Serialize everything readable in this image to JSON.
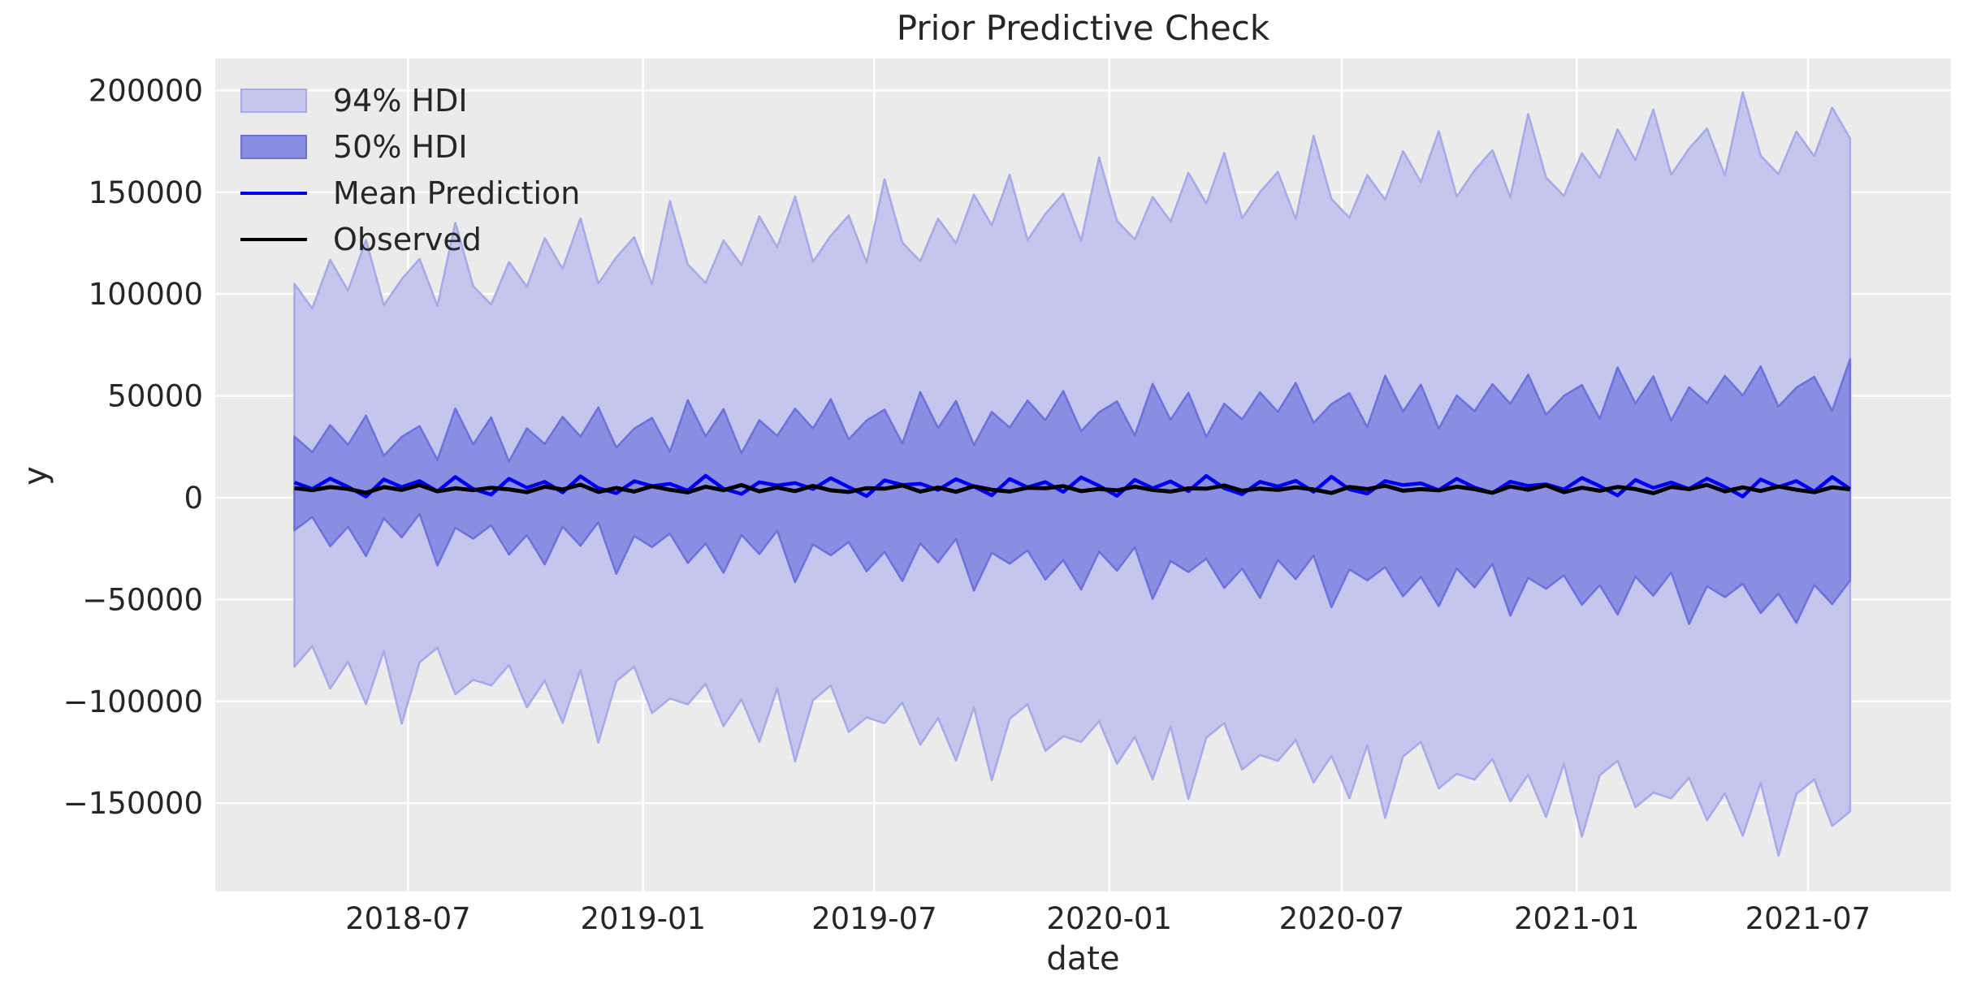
{
  "figure": {
    "title": "Prior Predictive Check",
    "x_axis_label": "date",
    "y_axis_label": "y"
  },
  "legend": {
    "items": [
      {
        "label": "94% HDI",
        "type": "patch",
        "fill": "#c4c6ee",
        "edge": "#a6aae8"
      },
      {
        "label": "50% HDI",
        "type": "patch",
        "fill": "#8a8ee2",
        "edge": "#6d71dc"
      },
      {
        "label": "Mean Prediction",
        "type": "line",
        "color": "#0000ee"
      },
      {
        "label": "Observed",
        "type": "line",
        "color": "#000000"
      }
    ]
  },
  "colors": {
    "page_bg": "#ffffff",
    "plot_bg": "#ebebeb",
    "grid": "#ffffff",
    "text": "#262626",
    "hdi94_fill": "#c4c6ee",
    "hdi94_edge": "#a6aae8",
    "hdi50_fill": "#8a8ee2",
    "hdi50_edge": "#6d71dc",
    "mean_line": "#0000ee",
    "observed_line": "#000000"
  },
  "chart_data": {
    "type": "line",
    "title": "Prior Predictive Check",
    "xlabel": "date",
    "ylabel": "y",
    "legend_position": "upper left",
    "grid": true,
    "x_domain": [
      "2018-01-31",
      "2021-10-21"
    ],
    "y_domain": [
      -193400,
      215700
    ],
    "x_ticks": [
      {
        "date": "2018-07-01",
        "label": "2018-07"
      },
      {
        "date": "2019-01-01",
        "label": "2019-01"
      },
      {
        "date": "2019-07-01",
        "label": "2019-07"
      },
      {
        "date": "2020-01-01",
        "label": "2020-01"
      },
      {
        "date": "2020-07-01",
        "label": "2020-07"
      },
      {
        "date": "2021-01-01",
        "label": "2021-01"
      },
      {
        "date": "2021-07-01",
        "label": "2021-07"
      }
    ],
    "y_ticks": [
      {
        "value": 200000,
        "label": "200000"
      },
      {
        "value": 150000,
        "label": "150000"
      },
      {
        "value": 100000,
        "label": "100000"
      },
      {
        "value": 50000,
        "label": "50000"
      },
      {
        "value": 0,
        "label": "0"
      },
      {
        "value": -50000,
        "label": "−50000"
      },
      {
        "value": -100000,
        "label": "−100000"
      },
      {
        "value": -150000,
        "label": "−150000"
      }
    ],
    "x_start_date": "2018-04-03",
    "x_step_days": 14,
    "series": [
      {
        "name": "94% HDI upper",
        "values": [
          105000,
          92890,
          116780,
          101670,
          126560,
          94450,
          107340,
          117230,
          94120,
          135010,
          103900,
          94790,
          115680,
          103570,
          127460,
          112350,
          137240,
          105130,
          118020,
          127910,
          104800,
          145690,
          114580,
          105470,
          126360,
          114250,
          138140,
          123030,
          147920,
          115810,
          128700,
          138590,
          115480,
          156370,
          125260,
          116150,
          137040,
          124930,
          148820,
          133710,
          158600,
          126490,
          139380,
          149270,
          126160,
          167050,
          135940,
          126830,
          147720,
          135610,
          159500,
          144390,
          169280,
          137170,
          150060,
          159950,
          136840,
          177730,
          146620,
          137510,
          158400,
          146290,
          170180,
          155070,
          179960,
          147850,
          160740,
          170630,
          147520,
          188410,
          157300,
          148190,
          169080,
          156970,
          180860,
          165750,
          190640,
          158530,
          171420,
          181310,
          158200,
          199090,
          167980,
          158870,
          179760,
          167650,
          191540,
          176430
        ]
      },
      {
        "name": "94% HDI lower",
        "values": [
          -83000,
          -72840,
          -93680,
          -80520,
          -101360,
          -75200,
          -111040,
          -80880,
          -73720,
          -96560,
          -89400,
          -92240,
          -82080,
          -102920,
          -89760,
          -110600,
          -84440,
          -120280,
          -90120,
          -82960,
          -105800,
          -98640,
          -101480,
          -91320,
          -112160,
          -99000,
          -119840,
          -93680,
          -129520,
          -99360,
          -92200,
          -115040,
          -107880,
          -110720,
          -100560,
          -121400,
          -108240,
          -129080,
          -102920,
          -138760,
          -108600,
          -101440,
          -124280,
          -117120,
          -119960,
          -109800,
          -130640,
          -117480,
          -138320,
          -112160,
          -148000,
          -117840,
          -110680,
          -133520,
          -126360,
          -129200,
          -119040,
          -139880,
          -126720,
          -147560,
          -121400,
          -157240,
          -127080,
          -119920,
          -142760,
          -135600,
          -138440,
          -128280,
          -149120,
          -135960,
          -156800,
          -130640,
          -166480,
          -136320,
          -129160,
          -152000,
          -144840,
          -147680,
          -137520,
          -158360,
          -145200,
          -166040,
          -139880,
          -175720,
          -145560,
          -138400,
          -161240,
          -154080
        ]
      },
      {
        "name": "50% HDI upper",
        "values": [
          30000,
          22310,
          35620,
          25930,
          40240,
          20550,
          29860,
          35170,
          18480,
          43790,
          26100,
          39410,
          17720,
          34030,
          26340,
          39650,
          29960,
          44270,
          24580,
          33890,
          39200,
          22510,
          47820,
          30130,
          43440,
          21750,
          38060,
          30370,
          43680,
          33990,
          48300,
          28610,
          37920,
          43230,
          26540,
          51850,
          34160,
          47470,
          25780,
          42090,
          34400,
          47710,
          38020,
          52330,
          32640,
          41950,
          47260,
          30570,
          55880,
          38190,
          51500,
          29810,
          46120,
          38430,
          51740,
          42050,
          56360,
          36670,
          45980,
          51290,
          34600,
          59910,
          42220,
          55530,
          33840,
          50150,
          42460,
          55770,
          46080,
          60390,
          40700,
          50010,
          55320,
          38630,
          63940,
          46250,
          59560,
          37870,
          54180,
          46490,
          59800,
          50110,
          64420,
          44730,
          54040,
          59350,
          42660,
          67970
        ]
      },
      {
        "name": "50% HDI lower",
        "values": [
          -16000,
          -9410,
          -23820,
          -14230,
          -28640,
          -10050,
          -19460,
          -7870,
          -33280,
          -14690,
          -20100,
          -13510,
          -27920,
          -18330,
          -32740,
          -14150,
          -23560,
          -11970,
          -37380,
          -18790,
          -24200,
          -17610,
          -32020,
          -22430,
          -36840,
          -18250,
          -27660,
          -16070,
          -41480,
          -22890,
          -28300,
          -21710,
          -36120,
          -26530,
          -40940,
          -22350,
          -31760,
          -20170,
          -45580,
          -26990,
          -32400,
          -25810,
          -40220,
          -30630,
          -45040,
          -26450,
          -35860,
          -24270,
          -49680,
          -31090,
          -36500,
          -29910,
          -44320,
          -34730,
          -49140,
          -30550,
          -39960,
          -28370,
          -53780,
          -35190,
          -40600,
          -34010,
          -48420,
          -38830,
          -53240,
          -34650,
          -44060,
          -32470,
          -57880,
          -39290,
          -44700,
          -38110,
          -52520,
          -42930,
          -57340,
          -38750,
          -48160,
          -36570,
          -61980,
          -43390,
          -48800,
          -42210,
          -56620,
          -47030,
          -61440,
          -42850,
          -52260,
          -40670
        ]
      },
      {
        "name": "Mean Prediction",
        "values": [
          7500,
          4300,
          9400,
          5300,
          600,
          9000,
          5200,
          8200,
          3100,
          10200,
          4300,
          1500,
          9300,
          4900,
          7800,
          2600,
          10500,
          4700,
          2200,
          8100,
          5700,
          6800,
          3500,
          10800,
          4400,
          1800,
          7600,
          6000,
          7200,
          4200,
          9600,
          5200,
          800,
          8500,
          6300,
          6900,
          3800,
          9100,
          5500,
          1200,
          9200,
          5100,
          7700,
          2800,
          10000,
          5800,
          900,
          8800,
          4600,
          8000,
          3200,
          10700,
          4600,
          1700,
          7800,
          5500,
          8300,
          2900,
          10300,
          4100,
          2000,
          8200,
          6200,
          7100,
          3700,
          9300,
          5000,
          2300,
          7900,
          5800,
          6600,
          4000,
          9700,
          5700,
          1100,
          8700,
          4800,
          7500,
          4300,
          9400,
          5300,
          600,
          9000,
          5200,
          8200,
          3100,
          10200,
          4300
        ]
      },
      {
        "name": "Observed",
        "values": [
          4700,
          3700,
          5200,
          4300,
          2400,
          5200,
          3800,
          6200,
          3100,
          4600,
          3700,
          4900,
          4100,
          2700,
          5400,
          4000,
          6400,
          2800,
          4800,
          3000,
          5600,
          3900,
          2600,
          5400,
          3700,
          6200,
          3100,
          5000,
          3200,
          5800,
          3600,
          2800,
          4700,
          4400,
          6000,
          3000,
          5000,
          2900,
          5600,
          3900,
          3000,
          4900,
          4600,
          5700,
          3200,
          4300,
          3600,
          5400,
          3800,
          3000,
          4600,
          4400,
          6000,
          3400,
          4500,
          3800,
          5100,
          4000,
          2300,
          5300,
          4200,
          5900,
          3400,
          4200,
          3600,
          5400,
          4200,
          2400,
          5500,
          3900,
          6100,
          2700,
          4900,
          3400,
          5300,
          4200,
          2200,
          5300,
          4200,
          6300,
          3100,
          5100,
          3300,
          5500,
          3900,
          2700,
          5100,
          4100
        ]
      }
    ]
  }
}
